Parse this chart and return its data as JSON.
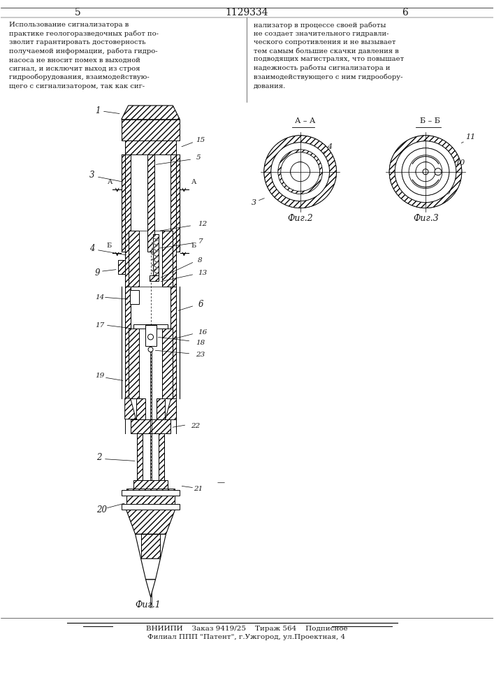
{
  "title_number": "1129334",
  "page_left": "5",
  "page_right": "6",
  "text_left": "Использование сигнализатора в\nпрактике геологоразведочных работ по-\nзволит гарантировать достоверность\nполучаемой информации, работа гидро-\nнасоса не вносит помех в выходной\nсигнал, и исключит выход из строя\nгидрооборудования, взаимодействую-\nщего с сигнализатором, так как сиг-",
  "text_right": "нализатор в процессе своей работы\nне создает значительного гидравли-\nческого сопротивления и не вызывает\nтем самым большие скачки давления в\nподводящих магистралях, что повышает\nнадежность работы сигнализатора и\nвзаимодействующего с ним гидрообору-\nдования.",
  "fig1_label": "Фиг.1",
  "fig2_label": "Фиг.2",
  "fig3_label": "Фиг.3",
  "footer_line1": "ВНИИПИ    Заказ 9419/25    Тираж 564    Подписное",
  "footer_line2": "Филиал ППП \"Патент\", г.Ужгород, ул.Проектная, 4",
  "bg_color": "#ffffff",
  "text_color": "#1a1a1a"
}
